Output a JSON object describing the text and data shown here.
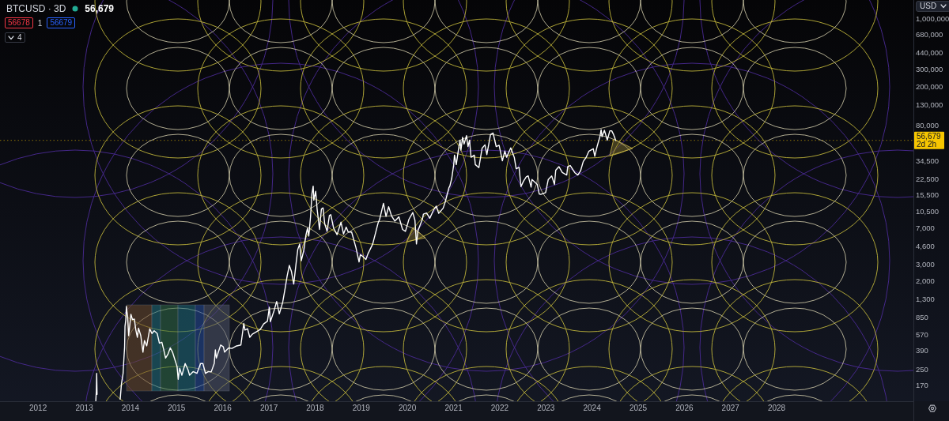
{
  "chart_data": {
    "type": "line",
    "title": "BTCUSD · 3D",
    "log": true,
    "xlim": [
      "2011-03-06",
      "2030-12-18"
    ],
    "ylim": [
      119,
      1565000
    ],
    "xticks": [
      "2012",
      "2013",
      "2014",
      "2015",
      "2016",
      "2017",
      "2018",
      "2019",
      "2020",
      "2021",
      "2022",
      "2023",
      "2024",
      "2025",
      "2026",
      "2027",
      "2028"
    ],
    "yticks": [
      170,
      250,
      390,
      570,
      850,
      {
        "value": 1300,
        "label": "1,300"
      },
      {
        "value": 2000,
        "label": "2,000"
      },
      {
        "value": 3000,
        "label": "3,000"
      },
      {
        "value": 4600,
        "label": "4,600"
      },
      {
        "value": 7000,
        "label": "7,000"
      },
      {
        "value": 10500,
        "label": "10,500"
      },
      {
        "value": 15500,
        "label": "15,500"
      },
      {
        "value": 22500,
        "label": "22,500"
      },
      {
        "value": 34500,
        "label": "34,500"
      },
      {
        "value": 80000,
        "label": "80,000"
      },
      {
        "value": 130000,
        "label": "130,000"
      },
      {
        "value": 200000,
        "label": "200,000"
      },
      {
        "value": 300000,
        "label": "300,000"
      },
      {
        "value": 440000,
        "label": "440,000"
      },
      {
        "value": 680000,
        "label": "680,000"
      },
      {
        "value": 1000000,
        "label": "1,000,000"
      }
    ],
    "x": [
      "2013-04-02",
      "2013-04-06",
      "2013-04-09",
      "2013-04-12",
      "2013-04-16",
      "2013-10-12",
      "2013-10-22",
      "2013-11-04",
      "2013-11-10",
      "2013-11-16",
      "2013-11-19",
      "2013-11-25",
      "2013-11-30",
      "2013-12-04",
      "2013-12-10",
      "2013-12-18",
      "2013-12-24",
      "2014-01-05",
      "2014-01-17",
      "2014-02-01",
      "2014-02-12",
      "2014-02-25",
      "2014-03-06",
      "2014-03-24",
      "2014-04-10",
      "2014-04-22",
      "2014-05-10",
      "2014-06-03",
      "2014-06-20",
      "2014-07-08",
      "2014-08-01",
      "2014-08-18",
      "2014-09-07",
      "2014-09-22",
      "2014-10-06",
      "2014-10-24",
      "2014-11-12",
      "2014-11-30",
      "2014-12-18",
      "2015-01-05",
      "2015-01-14",
      "2015-01-26",
      "2015-02-12",
      "2015-03-10",
      "2015-04-02",
      "2015-04-14",
      "2015-05-12",
      "2015-06-11",
      "2015-07-10",
      "2015-07-28",
      "2015-08-18",
      "2015-09-10",
      "2015-10-02",
      "2015-10-26",
      "2015-11-04",
      "2015-11-12",
      "2015-12-16",
      "2016-01-06",
      "2016-01-16",
      "2016-02-17",
      "2016-03-14",
      "2016-04-20",
      "2016-05-24",
      "2016-06-16",
      "2016-06-25",
      "2016-07-16",
      "2016-08-02",
      "2016-08-22",
      "2016-09-20",
      "2016-10-24",
      "2016-11-20",
      "2016-12-20",
      "2017-01-04",
      "2017-01-12",
      "2017-02-09",
      "2017-03-03",
      "2017-03-24",
      "2017-04-20",
      "2017-05-10",
      "2017-05-25",
      "2017-06-11",
      "2017-06-28",
      "2017-07-16",
      "2017-08-05",
      "2017-08-17",
      "2017-09-01",
      "2017-09-14",
      "2017-10-05",
      "2017-10-20",
      "2017-11-02",
      "2017-11-12",
      "2017-11-26",
      "2017-12-07",
      "2017-12-17",
      "2017-12-22",
      "2018-01-06",
      "2018-01-17",
      "2018-02-05",
      "2018-02-20",
      "2018-03-05",
      "2018-03-18",
      "2018-04-06",
      "2018-04-24",
      "2018-05-05",
      "2018-05-28",
      "2018-06-24",
      "2018-07-25",
      "2018-08-14",
      "2018-09-04",
      "2018-09-20",
      "2018-10-17",
      "2018-11-20",
      "2018-12-15",
      "2018-12-25",
      "2019-01-14",
      "2019-02-07",
      "2019-02-24",
      "2019-04-02",
      "2019-05-14",
      "2019-05-27",
      "2019-06-26",
      "2019-07-16",
      "2019-08-06",
      "2019-08-29",
      "2019-09-24",
      "2019-10-26",
      "2019-11-24",
      "2019-12-17",
      "2020-01-14",
      "2020-02-13",
      "2020-03-01",
      "2020-03-13",
      "2020-03-25",
      "2020-04-29",
      "2020-05-07",
      "2020-06-01",
      "2020-06-27",
      "2020-07-27",
      "2020-08-17",
      "2020-09-05",
      "2020-10-10",
      "2020-10-25",
      "2020-11-25",
      "2020-12-02",
      "2020-12-17",
      "2021-01-02",
      "2021-01-08",
      "2021-01-22",
      "2021-02-09",
      "2021-02-21",
      "2021-02-28",
      "2021-03-13",
      "2021-03-25",
      "2021-04-13",
      "2021-04-25",
      "2021-05-07",
      "2021-05-19",
      "2021-06-14",
      "2021-06-22",
      "2021-07-20",
      "2021-08-14",
      "2021-09-06",
      "2021-09-21",
      "2021-10-20",
      "2021-11-09",
      "2021-12-04",
      "2021-12-27",
      "2022-01-22",
      "2022-02-10",
      "2022-02-24",
      "2022-03-29",
      "2022-04-26",
      "2022-05-11",
      "2022-06-03",
      "2022-06-18",
      "2022-07-08",
      "2022-07-30",
      "2022-08-14",
      "2022-09-06",
      "2022-09-13",
      "2022-10-25",
      "2022-11-09",
      "2022-11-21",
      "2022-12-30",
      "2023-01-20",
      "2023-02-16",
      "2023-03-10",
      "2023-03-20",
      "2023-04-14",
      "2023-05-11",
      "2023-06-15",
      "2023-06-23",
      "2023-07-13",
      "2023-08-17",
      "2023-09-11",
      "2023-10-02",
      "2023-10-24",
      "2023-11-15",
      "2023-12-08",
      "2024-01-11",
      "2024-01-23",
      "2024-02-12",
      "2024-03-05",
      "2024-03-13",
      "2024-03-20",
      "2024-04-08",
      "2024-05-01",
      "2024-05-21",
      "2024-06-05",
      "2024-06-20",
      "2024-06-28",
      "2024-07-06"
    ],
    "series": [
      {
        "color": "#ffffff",
        "values": [
          120,
          150,
          230,
          140,
          null,
          125,
          180,
          230,
          320,
          430,
          700,
          810,
          1120,
          1000,
          880,
          560,
          660,
          930,
          820,
          830,
          650,
          540,
          670,
          560,
          380,
          500,
          440,
          660,
          590,
          630,
          590,
          470,
          480,
          400,
          330,
          360,
          420,
          380,
          320,
          270,
          200,
          260,
          220,
          290,
          250,
          220,
          240,
          230,
          290,
          290,
          230,
          240,
          238,
          290,
          400,
          330,
          450,
          430,
          380,
          420,
          415,
          440,
          450,
          750,
          640,
          660,
          540,
          580,
          610,
          650,
          740,
          790,
          1100,
          780,
          1000,
          1260,
          940,
          1240,
          1750,
          2300,
          2950,
          2550,
          1900,
          3200,
          4300,
          4900,
          3300,
          4300,
          6000,
          7100,
          5900,
          9300,
          16000,
          19200,
          13800,
          17000,
          11200,
          6900,
          11200,
          11500,
          7900,
          6600,
          9600,
          9800,
          7100,
          6100,
          8200,
          6200,
          7300,
          6500,
          6500,
          4500,
          3200,
          3800,
          3650,
          3400,
          3900,
          4900,
          8000,
          8800,
          12800,
          9400,
          11800,
          9500,
          8400,
          9300,
          6900,
          6600,
          8800,
          10300,
          8600,
          4900,
          6700,
          8800,
          9900,
          10200,
          9000,
          11000,
          12000,
          10100,
          11400,
          13000,
          18500,
          19200,
          23000,
          32000,
          40000,
          32000,
          46000,
          57000,
          45000,
          61000,
          52000,
          63500,
          49000,
          57000,
          38000,
          40000,
          32000,
          29800,
          47000,
          51000,
          40500,
          65000,
          67500,
          49000,
          50500,
          35000,
          44000,
          38000,
          47500,
          38000,
          29000,
          30000,
          19000,
          21600,
          24000,
          24500,
          18800,
          22500,
          20000,
          16000,
          15800,
          16500,
          22500,
          24500,
          20000,
          28000,
          30500,
          26500,
          25000,
          30500,
          31300,
          26500,
          25000,
          27500,
          34500,
          37800,
          44000,
          46500,
          39000,
          50000,
          63000,
          73000,
          62000,
          72000,
          57000,
          71000,
          71000,
          65000,
          61000,
          56679
        ]
      }
    ],
    "ref_lines": [
      {
        "axis": "y",
        "value": 56679,
        "label": "56,679",
        "color": "#f7c600",
        "line_style": "dotted"
      }
    ],
    "annotations": [
      "56,679",
      "56678",
      "1",
      "56679",
      "4",
      "USD",
      "2d 2h"
    ]
  }
}
